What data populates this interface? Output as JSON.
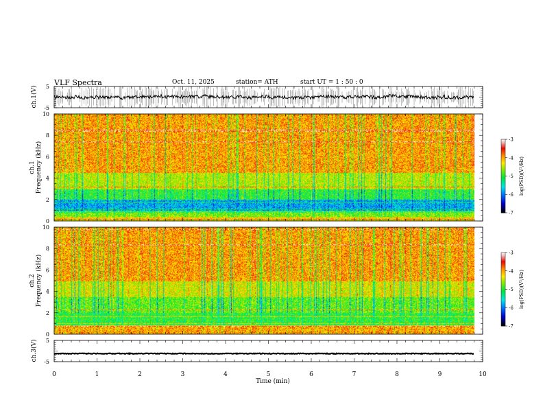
{
  "header": {
    "title": "VLF  Spectra",
    "date": "Oct. 11, 2025",
    "station": "station= ATH",
    "start": "start  UT  =    1 : 50 : 0"
  },
  "chart_data": [
    {
      "type": "line",
      "panel": "ch1-waveform",
      "ylabel": "ch.1(V)",
      "yticks": [
        "5",
        "-5"
      ],
      "ylim": [
        -5,
        5
      ],
      "xlim": [
        0,
        10
      ],
      "series": [
        {
          "x_range": [
            0,
            9.8
          ],
          "baseline": 0,
          "spike_extent": [
            -5,
            5
          ]
        }
      ]
    },
    {
      "type": "heatmap",
      "panel": "ch1-spectrogram",
      "ylabel_line1": "ch.1",
      "ylabel_line2": "Frequency  (kHz)",
      "yticks": [
        "0",
        "2",
        "4",
        "6",
        "8",
        "10"
      ],
      "ylim": [
        0,
        10
      ],
      "xlim": [
        0,
        10
      ],
      "data_extent_min": 9.8,
      "colorbar": {
        "label": "log(PSD)(V²/Hz)",
        "ticks": [
          "-3",
          "-4",
          "-5",
          "-6",
          "-7"
        ],
        "range": [
          -7,
          -3
        ]
      },
      "band_levels": [
        {
          "freq_khz": [
            0,
            0.4
          ],
          "level": -4.3
        },
        {
          "freq_khz": [
            0.4,
            1.0
          ],
          "level": -4.7
        },
        {
          "freq_khz": [
            1.0,
            2.0
          ],
          "level": -5.8
        },
        {
          "freq_khz": [
            2.0,
            3.0
          ],
          "level": -5.0
        },
        {
          "freq_khz": [
            3.0,
            4.5
          ],
          "level": -4.5
        },
        {
          "freq_khz": [
            4.5,
            10
          ],
          "level": -4.0
        }
      ]
    },
    {
      "type": "heatmap",
      "panel": "ch2-spectrogram",
      "ylabel_line1": "ch.2",
      "ylabel_line2": "Frequency  (kHz)",
      "yticks": [
        "0",
        "2",
        "4",
        "6",
        "8",
        "10"
      ],
      "ylim": [
        0,
        10
      ],
      "xlim": [
        0,
        10
      ],
      "data_extent_min": 9.8,
      "colorbar": {
        "label": "log(PSD)(V²/Hz)",
        "ticks": [
          "-3",
          "-4",
          "-5",
          "-6",
          "-7"
        ],
        "range": [
          -7,
          -3
        ]
      },
      "band_levels": [
        {
          "freq_khz": [
            0,
            0.8
          ],
          "level": -4.0
        },
        {
          "freq_khz": [
            0.8,
            2.0
          ],
          "level": -5.0
        },
        {
          "freq_khz": [
            2.0,
            3.5
          ],
          "level": -4.8
        },
        {
          "freq_khz": [
            3.5,
            5.0
          ],
          "level": -4.4
        },
        {
          "freq_khz": [
            5.0,
            10
          ],
          "level": -4.0
        }
      ]
    },
    {
      "type": "line",
      "panel": "ch3-waveform",
      "ylabel": "ch.3(V)",
      "yticks": [
        "5",
        "-5"
      ],
      "ylim": [
        -5,
        5
      ],
      "xlim": [
        0,
        10
      ],
      "xlabel": "Time  (min)",
      "xticks": [
        "0",
        "1",
        "2",
        "3",
        "4",
        "5",
        "6",
        "7",
        "8",
        "9",
        "10"
      ],
      "series": [
        {
          "x_range": [
            0,
            9.8
          ],
          "level": -1.2
        }
      ]
    }
  ]
}
